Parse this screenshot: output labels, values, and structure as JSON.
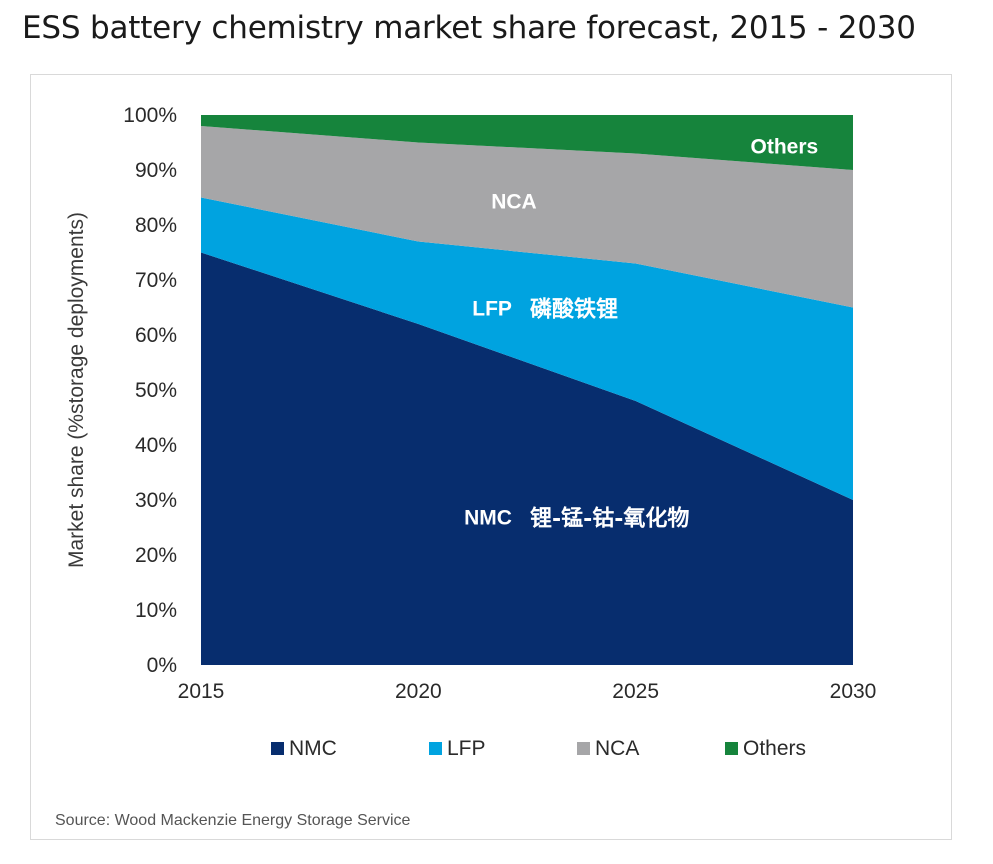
{
  "page_title": "ESS battery chemistry market share forecast, 2015 - 2030",
  "source": "Source: Wood Mackenzie Energy Storage Service",
  "chart_data": {
    "type": "area",
    "stacked": true,
    "x": [
      2015,
      2020,
      2025,
      2030
    ],
    "xlim": [
      2015,
      2030
    ],
    "ylim": [
      0,
      100
    ],
    "ylabel": "Market share (%storage deployments)",
    "xlabel": "",
    "x_ticks": [
      "2015",
      "2020",
      "2025",
      "2030"
    ],
    "y_ticks": [
      "0%",
      "10%",
      "20%",
      "30%",
      "40%",
      "50%",
      "60%",
      "70%",
      "80%",
      "90%",
      "100%"
    ],
    "y_tick_values": [
      0,
      10,
      20,
      30,
      40,
      50,
      60,
      70,
      80,
      90,
      100
    ],
    "grid": false,
    "legend_position": "bottom",
    "series": [
      {
        "name": "NMC",
        "color": "#072d6e",
        "values": [
          75,
          62,
          48,
          30
        ]
      },
      {
        "name": "LFP",
        "color": "#00a3e0",
        "values": [
          10,
          15,
          25,
          35
        ]
      },
      {
        "name": "NCA",
        "color": "#a6a6a8",
        "values": [
          13,
          18,
          20,
          25
        ]
      },
      {
        "name": "Others",
        "color": "#16843c",
        "values": [
          2,
          5,
          7,
          10
        ]
      }
    ],
    "area_labels": [
      {
        "series": "Others",
        "text": "Others",
        "annotation": ""
      },
      {
        "series": "NCA",
        "text": "NCA",
        "annotation": ""
      },
      {
        "series": "LFP",
        "text": "LFP",
        "annotation": "磷酸铁锂"
      },
      {
        "series": "NMC",
        "text": "NMC",
        "annotation": "锂-锰-钴-氧化物"
      }
    ]
  }
}
